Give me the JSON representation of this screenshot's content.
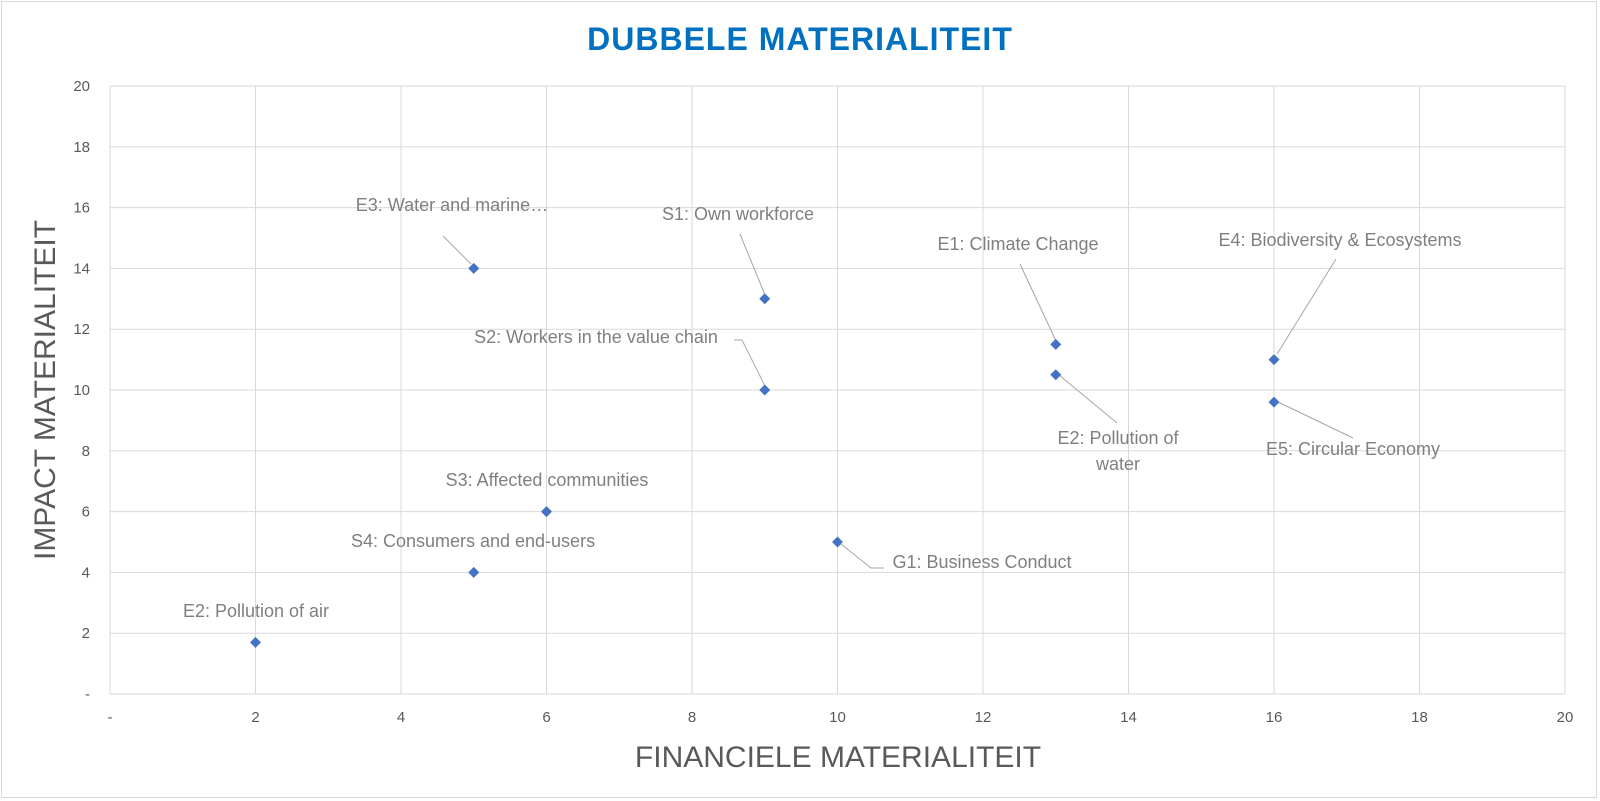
{
  "chart_data": {
    "type": "scatter",
    "title": "DUBBELE MATERIALITEIT",
    "xlabel": "FINANCIELE MATERIALITEIT",
    "ylabel": "IMPACT MATERIALITEIT",
    "xlim": [
      0,
      20
    ],
    "ylim": [
      0,
      20
    ],
    "x_ticks": [
      "-",
      "2",
      "4",
      "6",
      "8",
      "10",
      "12",
      "14",
      "16",
      "18",
      "20"
    ],
    "y_ticks": [
      "-",
      "2",
      "4",
      "6",
      "8",
      "10",
      "12",
      "14",
      "16",
      "18",
      "20"
    ],
    "grid": true,
    "legend": "none",
    "colors": {
      "title": "#0070c0",
      "marker": "#4472c4",
      "label": "#7f7f7f",
      "grid": "#d9d9d9"
    },
    "points": [
      {
        "label": "E3: Water and marine…",
        "x": 5,
        "y": 14
      },
      {
        "label": "S1: Own workforce",
        "x": 9,
        "y": 13
      },
      {
        "label": "E1: Climate Change",
        "x": 13,
        "y": 11.5
      },
      {
        "label": "E4: Biodiversity & Ecosystems",
        "x": 16,
        "y": 11
      },
      {
        "label": "S2: Workers in the value chain",
        "x": 9,
        "y": 10
      },
      {
        "label": "E2: Pollution of water",
        "x": 13,
        "y": 10.5
      },
      {
        "label": "E5: Circular Economy",
        "x": 16,
        "y": 9.6
      },
      {
        "label": "S3: Affected communities",
        "x": 6,
        "y": 6
      },
      {
        "label": "G1: Business Conduct",
        "x": 10,
        "y": 5
      },
      {
        "label": "S4: Consumers and end-users",
        "x": 5,
        "y": 4
      },
      {
        "label": "E2: Pollution of air",
        "x": 2,
        "y": 1.7
      }
    ]
  }
}
